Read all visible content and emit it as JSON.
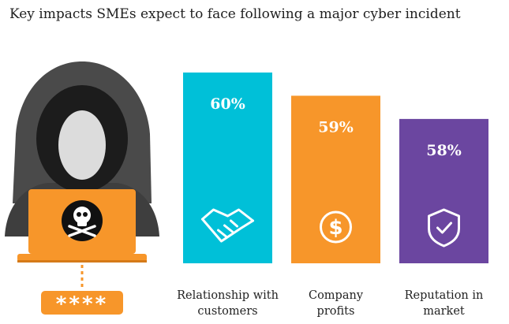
{
  "title": "Key impacts SMEs expect to face following a major cyber incident",
  "illustration": {
    "icon": "hacker-with-laptop-icon",
    "laptop_icon": "skull-crossbones-icon",
    "password_mask": "****"
  },
  "chart_data": {
    "type": "bar",
    "title": "Key impacts SMEs expect to face following a major cyber incident",
    "categories": [
      [
        "Relationship with",
        "customers"
      ],
      [
        "Company",
        "profits"
      ],
      [
        "Reputation in",
        "market"
      ]
    ],
    "values": [
      60,
      59,
      58
    ],
    "value_labels": [
      "60%",
      "59%",
      "58%"
    ],
    "unit": "%",
    "colors": [
      "#00C0D8",
      "#F7962A",
      "#6B46A0"
    ],
    "icons": [
      "handshake-icon",
      "dollar-coin-icon",
      "shield-check-icon"
    ],
    "grid": false,
    "legend": "none"
  }
}
